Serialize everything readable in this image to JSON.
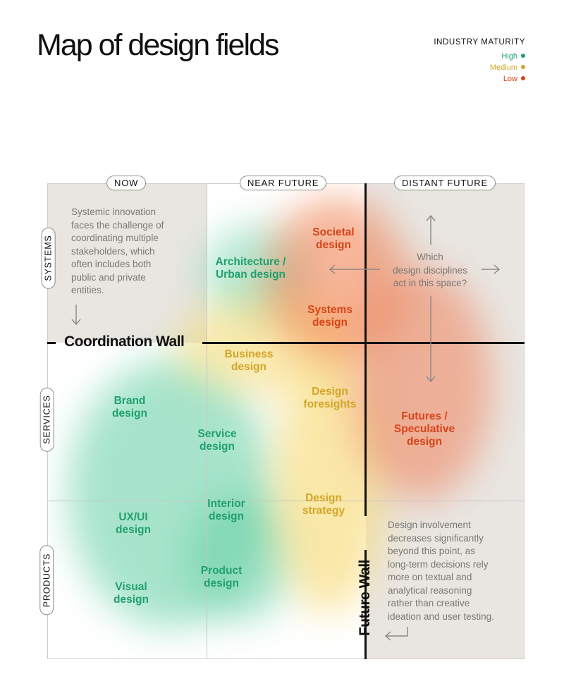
{
  "title": "Map of design fields",
  "legend": {
    "title": "INDUSTRY MATURITY",
    "items": [
      {
        "label": "High",
        "color": "#22a06f"
      },
      {
        "label": "Medium",
        "color": "#d2a528"
      },
      {
        "label": "Low",
        "color": "#d64519"
      }
    ]
  },
  "columns": [
    "NOW",
    "NEAR FUTURE",
    "DISTANT FUTURE"
  ],
  "rows": [
    "SYSTEMS",
    "SERVICES",
    "PRODUCTS"
  ],
  "walls": {
    "coordination": "Coordination Wall",
    "future": "Future Wall"
  },
  "fields": {
    "architecture": [
      "Architecture /",
      "Urban design"
    ],
    "societal": [
      "Societal",
      "design"
    ],
    "systems": [
      "Systems",
      "design"
    ],
    "business": [
      "Business",
      "design"
    ],
    "brand": [
      "Brand",
      "design"
    ],
    "foresights": [
      "Design",
      "foresights"
    ],
    "service": [
      "Service",
      "design"
    ],
    "futures": [
      "Futures /",
      "Speculative",
      "design"
    ],
    "uxui": [
      "UX/UI",
      "design"
    ],
    "interior": [
      "Interior",
      "design"
    ],
    "strategy": [
      "Design",
      "strategy"
    ],
    "product": [
      "Product",
      "design"
    ],
    "visual": [
      "Visual",
      "design"
    ]
  },
  "notes": {
    "systemic": [
      "Systemic innovation",
      "faces the challenge of",
      "coordinating multiple",
      "stakeholders, which",
      "often includes both",
      "public and private",
      "entities."
    ],
    "question": [
      "Which",
      "design disciplines",
      "act in this space?"
    ],
    "involvement": [
      "Design involvement",
      "decreases significantly",
      "beyond this point, as",
      "long-term decisions rely",
      "more on textual and",
      "analytical reasoning",
      "rather than creative",
      "ideation and user testing."
    ]
  }
}
